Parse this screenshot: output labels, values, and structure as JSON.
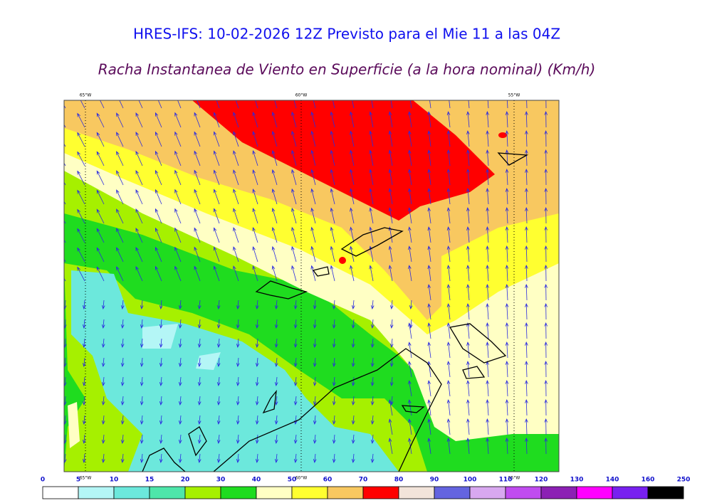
{
  "header": {
    "title": "HRES-IFS: 10-02-2026 12Z Previsto para el Mie 11 a las 04Z",
    "subtitle": "Racha Instantanea de Viento en Superficie (a la hora nominal) (Km/h)"
  },
  "map": {
    "lon_labels": [
      "65°W",
      "60°W",
      "55°W"
    ]
  },
  "colorbar": {
    "ticks": [
      0,
      5,
      10,
      15,
      20,
      30,
      40,
      50,
      60,
      70,
      80,
      90,
      100,
      110,
      120,
      130,
      140,
      160,
      250
    ],
    "colors": [
      "#ffffff",
      "#b4f6f6",
      "#6ce8dc",
      "#4ee6aa",
      "#a6f000",
      "#1fdc1f",
      "#ffffc4",
      "#ffff30",
      "#f8c860",
      "#ff0000",
      "#f2e4da",
      "#6464e0",
      "#d8a8f0",
      "#c04cf0",
      "#8c20b4",
      "#ff00ff",
      "#7820f0",
      "#000000"
    ]
  }
}
